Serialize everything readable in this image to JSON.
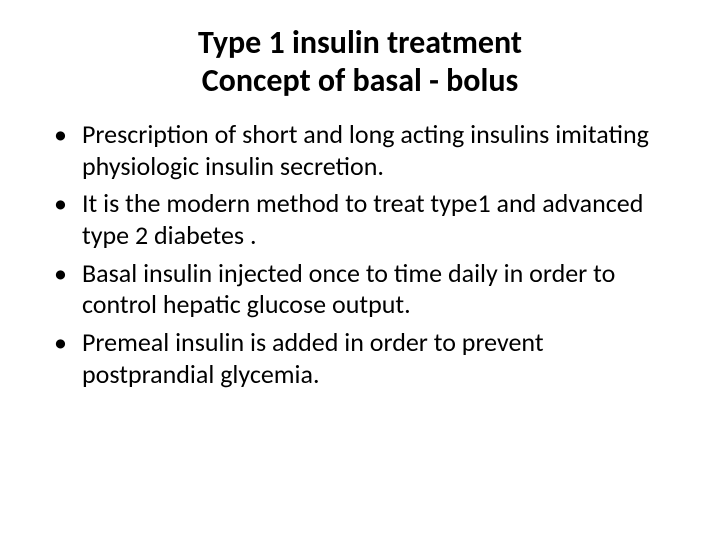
{
  "slide": {
    "background_color": "#ffffff",
    "text_color": "#000000",
    "title": {
      "line1": "Type 1 insulin  treatment",
      "line2": "Concept of basal - bolus",
      "font_size": 32,
      "font_weight": 700,
      "align": "center"
    },
    "bullets": {
      "font_size": 26,
      "items": [
        "Prescription of short and  long acting  insulins imitating physiologic  insulin secretion.",
        "It is the modern method to treat type1 and advanced type 2  diabetes .",
        "Basal insulin  injected once to time daily in order to control hepatic glucose output.",
        "Premeal insulin is added in order to prevent postprandial glycemia."
      ]
    }
  }
}
